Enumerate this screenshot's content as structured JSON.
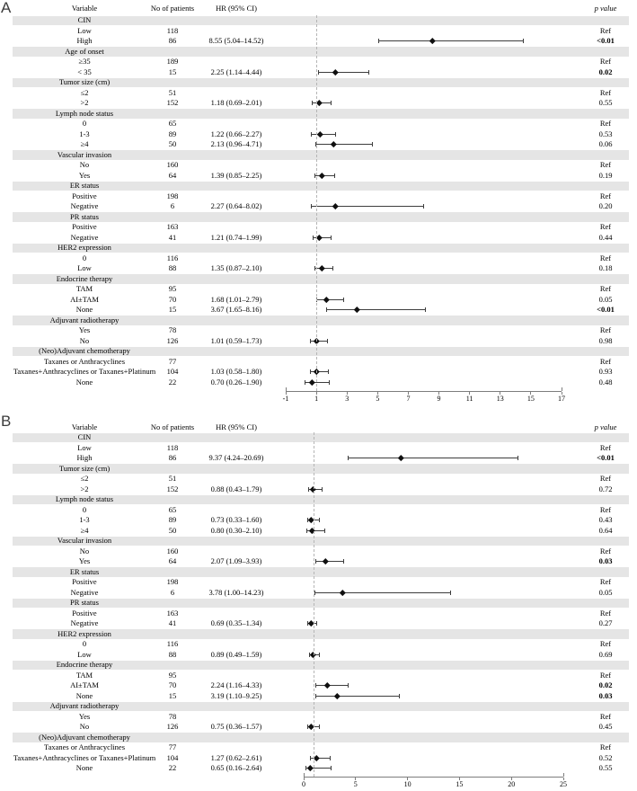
{
  "colors": {
    "band": "#e5e5e5",
    "ci_line": "#3d3d3d",
    "marker": "#101010",
    "ref_line": "#b5b5b5",
    "axis": "#7d7d7d"
  },
  "chart_data": [
    {
      "type": "forest",
      "panel_label": "A",
      "columns": {
        "variable": "Variable",
        "patients": "No of patients",
        "hr_ci": "HR (95% CI)",
        "p_value": "p value"
      },
      "x_axis": {
        "min": -1,
        "max": 17,
        "ticks": [
          -1,
          1,
          3,
          5,
          7,
          9,
          11,
          13,
          15,
          17
        ],
        "ref_line": 1
      },
      "rows": [
        {
          "type": "category",
          "label": "CIN"
        },
        {
          "type": "item",
          "label": "Low",
          "n": "118",
          "p": "Ref",
          "bold": false
        },
        {
          "type": "item",
          "label": "High",
          "n": "86",
          "hr_text": "8.55 (5.04–14.52)",
          "est": 8.55,
          "lo": 5.04,
          "hi": 14.52,
          "p": "<0.01",
          "bold": true
        },
        {
          "type": "category",
          "label": "Age of onset"
        },
        {
          "type": "item",
          "label": "≥35",
          "n": "189",
          "p": "Ref",
          "bold": false
        },
        {
          "type": "item",
          "label": "< 35",
          "n": "15",
          "hr_text": "2.25 (1.14–4.44)",
          "est": 2.25,
          "lo": 1.14,
          "hi": 4.44,
          "p": "0.02",
          "bold": true
        },
        {
          "type": "category",
          "label": "Tumor size (cm)"
        },
        {
          "type": "item",
          "label": "≤2",
          "n": "51",
          "p": "Ref",
          "bold": false
        },
        {
          "type": "item",
          "label": ">2",
          "n": "152",
          "hr_text": "1.18 (0.69–2.01)",
          "est": 1.18,
          "lo": 0.69,
          "hi": 2.01,
          "p": "0.55",
          "bold": false
        },
        {
          "type": "category",
          "label": "Lymph node status"
        },
        {
          "type": "item",
          "label": "0",
          "n": "65",
          "p": "Ref",
          "bold": false
        },
        {
          "type": "item",
          "label": "1-3",
          "n": "89",
          "hr_text": "1.22 (0.66–2.27)",
          "est": 1.22,
          "lo": 0.66,
          "hi": 2.27,
          "p": "0.53",
          "bold": false
        },
        {
          "type": "item",
          "label": "≥4",
          "n": "50",
          "hr_text": "2.13 (0.96–4.71)",
          "est": 2.13,
          "lo": 0.96,
          "hi": 4.71,
          "p": "0.06",
          "bold": false
        },
        {
          "type": "category",
          "label": "Vascular invasion"
        },
        {
          "type": "item",
          "label": "No",
          "n": "160",
          "p": "Ref",
          "bold": false
        },
        {
          "type": "item",
          "label": "Yes",
          "n": "64",
          "hr_text": "1.39 (0.85–2.25)",
          "est": 1.39,
          "lo": 0.85,
          "hi": 2.25,
          "p": "0.19",
          "bold": false
        },
        {
          "type": "category",
          "label": "ER status"
        },
        {
          "type": "item",
          "label": "Positive",
          "n": "198",
          "p": "Ref",
          "bold": false
        },
        {
          "type": "item",
          "label": "Negative",
          "n": "6",
          "hr_text": "2.27 (0.64–8.02)",
          "est": 2.27,
          "lo": 0.64,
          "hi": 8.02,
          "p": "0.20",
          "bold": false
        },
        {
          "type": "category",
          "label": "PR status"
        },
        {
          "type": "item",
          "label": "Positive",
          "n": "163",
          "p": "Ref",
          "bold": false
        },
        {
          "type": "item",
          "label": "Negative",
          "n": "41",
          "hr_text": "1.21 (0.74–1.99)",
          "est": 1.21,
          "lo": 0.74,
          "hi": 1.99,
          "p": "0.44",
          "bold": false
        },
        {
          "type": "category",
          "label": "HER2 expression"
        },
        {
          "type": "item",
          "label": "0",
          "n": "116",
          "p": "Ref",
          "bold": false
        },
        {
          "type": "item",
          "label": "Low",
          "n": "88",
          "hr_text": "1.35 (0.87–2.10)",
          "est": 1.35,
          "lo": 0.87,
          "hi": 2.1,
          "p": "0.18",
          "bold": false
        },
        {
          "type": "category",
          "label": "Endocrine therapy"
        },
        {
          "type": "item",
          "label": "TAM",
          "n": "95",
          "p": "Ref",
          "bold": false
        },
        {
          "type": "item",
          "label": "AI±TAM",
          "n": "70",
          "hr_text": "1.68 (1.01–2.79)",
          "est": 1.68,
          "lo": 1.01,
          "hi": 2.79,
          "p": "0.05",
          "bold": false
        },
        {
          "type": "item",
          "label": "None",
          "n": "15",
          "hr_text": "3.67 (1.65–8.16)",
          "est": 3.67,
          "lo": 1.65,
          "hi": 8.16,
          "p": "<0.01",
          "bold": true
        },
        {
          "type": "category",
          "label": "Adjuvant radiotherapy"
        },
        {
          "type": "item",
          "label": "Yes",
          "n": "78",
          "p": "Ref",
          "bold": false
        },
        {
          "type": "item",
          "label": "No",
          "n": "126",
          "hr_text": "1.01 (0.59–1.73)",
          "est": 1.01,
          "lo": 0.59,
          "hi": 1.73,
          "p": "0.98",
          "bold": false
        },
        {
          "type": "category",
          "label": "(Neo)Adjuvant chemotherapy"
        },
        {
          "type": "item",
          "label": "Taxanes or Anthracyclines",
          "n": "77",
          "p": "Ref",
          "bold": false
        },
        {
          "type": "item",
          "label": "Taxanes+Anthracyclines or Taxanes+Platinum",
          "n": "104",
          "hr_text": "1.03 (0.58–1.80)",
          "est": 1.03,
          "lo": 0.58,
          "hi": 1.8,
          "p": "0.93",
          "bold": false
        },
        {
          "type": "item",
          "label": "None",
          "n": "22",
          "hr_text": "0.70 (0.26–1.90)",
          "est": 0.7,
          "lo": 0.26,
          "hi": 1.9,
          "p": "0.48",
          "bold": false
        }
      ]
    },
    {
      "type": "forest",
      "panel_label": "B",
      "columns": {
        "variable": "Variable",
        "patients": "No of patients",
        "hr_ci": "HR (95% CI)",
        "p_value": "p value"
      },
      "x_axis": {
        "min": 0,
        "max": 25,
        "ticks": [
          0,
          5,
          10,
          15,
          20,
          25
        ],
        "ref_line": 1
      },
      "rows": [
        {
          "type": "category",
          "label": "CIN"
        },
        {
          "type": "item",
          "label": "Low",
          "n": "118",
          "p": "Ref",
          "bold": false
        },
        {
          "type": "item",
          "label": "High",
          "n": "86",
          "hr_text": "9.37 (4.24–20.69)",
          "est": 9.37,
          "lo": 4.24,
          "hi": 20.69,
          "p": "<0.01",
          "bold": true
        },
        {
          "type": "category",
          "label": "Tumor size (cm)"
        },
        {
          "type": "item",
          "label": "≤2",
          "n": "51",
          "p": "Ref",
          "bold": false
        },
        {
          "type": "item",
          "label": ">2",
          "n": "152",
          "hr_text": "0.88 (0.43–1.79)",
          "est": 0.88,
          "lo": 0.43,
          "hi": 1.79,
          "p": "0.72",
          "bold": false
        },
        {
          "type": "category",
          "label": "Lymph node status"
        },
        {
          "type": "item",
          "label": "0",
          "n": "65",
          "p": "Ref",
          "bold": false
        },
        {
          "type": "item",
          "label": "1-3",
          "n": "89",
          "hr_text": "0.73 (0.33–1.60)",
          "est": 0.73,
          "lo": 0.33,
          "hi": 1.6,
          "p": "0.43",
          "bold": false
        },
        {
          "type": "item",
          "label": "≥4",
          "n": "50",
          "hr_text": "0.80 (0.30–2.10)",
          "est": 0.8,
          "lo": 0.3,
          "hi": 2.1,
          "p": "0.64",
          "bold": false
        },
        {
          "type": "category",
          "label": "Vascular invasion"
        },
        {
          "type": "item",
          "label": "No",
          "n": "160",
          "p": "Ref",
          "bold": false
        },
        {
          "type": "item",
          "label": "Yes",
          "n": "64",
          "hr_text": "2.07 (1.09–3.93)",
          "est": 2.07,
          "lo": 1.09,
          "hi": 3.93,
          "p": "0.03",
          "bold": true
        },
        {
          "type": "category",
          "label": "ER status"
        },
        {
          "type": "item",
          "label": "Positive",
          "n": "198",
          "p": "Ref",
          "bold": false
        },
        {
          "type": "item",
          "label": "Negative",
          "n": "6",
          "hr_text": "3.78 (1.00–14.23)",
          "est": 3.78,
          "lo": 1.0,
          "hi": 14.23,
          "p": "0.05",
          "bold": false
        },
        {
          "type": "category",
          "label": "PR status"
        },
        {
          "type": "item",
          "label": "Positive",
          "n": "163",
          "p": "Ref",
          "bold": false
        },
        {
          "type": "item",
          "label": "Negative",
          "n": "41",
          "hr_text": "0.69 (0.35–1.34)",
          "est": 0.69,
          "lo": 0.35,
          "hi": 1.34,
          "p": "0.27",
          "bold": false
        },
        {
          "type": "category",
          "label": "HER2 expression"
        },
        {
          "type": "item",
          "label": "0",
          "n": "116",
          "p": "Ref",
          "bold": false
        },
        {
          "type": "item",
          "label": "Low",
          "n": "88",
          "hr_text": "0.89 (0.49–1.59)",
          "est": 0.89,
          "lo": 0.49,
          "hi": 1.59,
          "p": "0.69",
          "bold": false
        },
        {
          "type": "category",
          "label": "Endocrine therapy"
        },
        {
          "type": "item",
          "label": "TAM",
          "n": "95",
          "p": "Ref",
          "bold": false
        },
        {
          "type": "item",
          "label": "AI±TAM",
          "n": "70",
          "hr_text": "2.24 (1.16–4.33)",
          "est": 2.24,
          "lo": 1.16,
          "hi": 4.33,
          "p": "0.02",
          "bold": true
        },
        {
          "type": "item",
          "label": "None",
          "n": "15",
          "hr_text": "3.19 (1.10–9.25)",
          "est": 3.19,
          "lo": 1.1,
          "hi": 9.25,
          "p": "0.03",
          "bold": true
        },
        {
          "type": "category",
          "label": "Adjuvant radiotherapy"
        },
        {
          "type": "item",
          "label": "Yes",
          "n": "78",
          "p": "Ref",
          "bold": false
        },
        {
          "type": "item",
          "label": "No",
          "n": "126",
          "hr_text": "0.75 (0.36–1.57)",
          "est": 0.75,
          "lo": 0.36,
          "hi": 1.57,
          "p": "0.45",
          "bold": false
        },
        {
          "type": "category",
          "label": "(Neo)Adjuvant chemotherapy"
        },
        {
          "type": "item",
          "label": "Taxanes or Anthracyclines",
          "n": "77",
          "p": "Ref",
          "bold": false
        },
        {
          "type": "item",
          "label": "Taxanes+Anthracyclines or Taxanes+Platinum",
          "n": "104",
          "hr_text": "1.27 (0.62–2.61)",
          "est": 1.27,
          "lo": 0.62,
          "hi": 2.61,
          "p": "0.52",
          "bold": false
        },
        {
          "type": "item",
          "label": "None",
          "n": "22",
          "hr_text": "0.65 (0.16–2.64)",
          "est": 0.65,
          "lo": 0.16,
          "hi": 2.64,
          "p": "0.55",
          "bold": false
        }
      ]
    }
  ]
}
